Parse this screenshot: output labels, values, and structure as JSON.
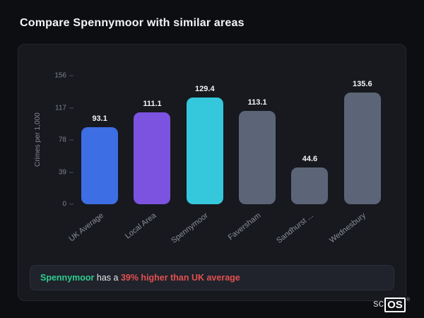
{
  "page": {
    "title": "Compare Spennymoor with similar areas"
  },
  "chart_data": {
    "type": "bar",
    "title": "",
    "xlabel": "",
    "ylabel": "Crimes per 1,000",
    "ylim": [
      0,
      156
    ],
    "yticks": [
      156,
      117,
      78,
      39,
      0
    ],
    "grid": false,
    "legend": false,
    "categories": [
      "UK Average",
      "Local Area",
      "Spennymoor",
      "Faversham",
      "Sandhurst ...",
      "Wednesbury"
    ],
    "values": [
      93.1,
      111.1,
      129.4,
      113.1,
      44.6,
      135.6
    ],
    "colors": [
      "#3e6ee3",
      "#7c52e0",
      "#35c8dc",
      "#5b6577",
      "#5b6577",
      "#5b6577"
    ]
  },
  "footer": {
    "highlight": "Spennymoor",
    "middle": " has a ",
    "stat": "39% higher than UK average",
    "highlight_color": "#2ecc8f",
    "stat_color": "#e25050"
  },
  "logo": {
    "prefix": "sc",
    "suffix": "OS",
    "reg": "®"
  }
}
